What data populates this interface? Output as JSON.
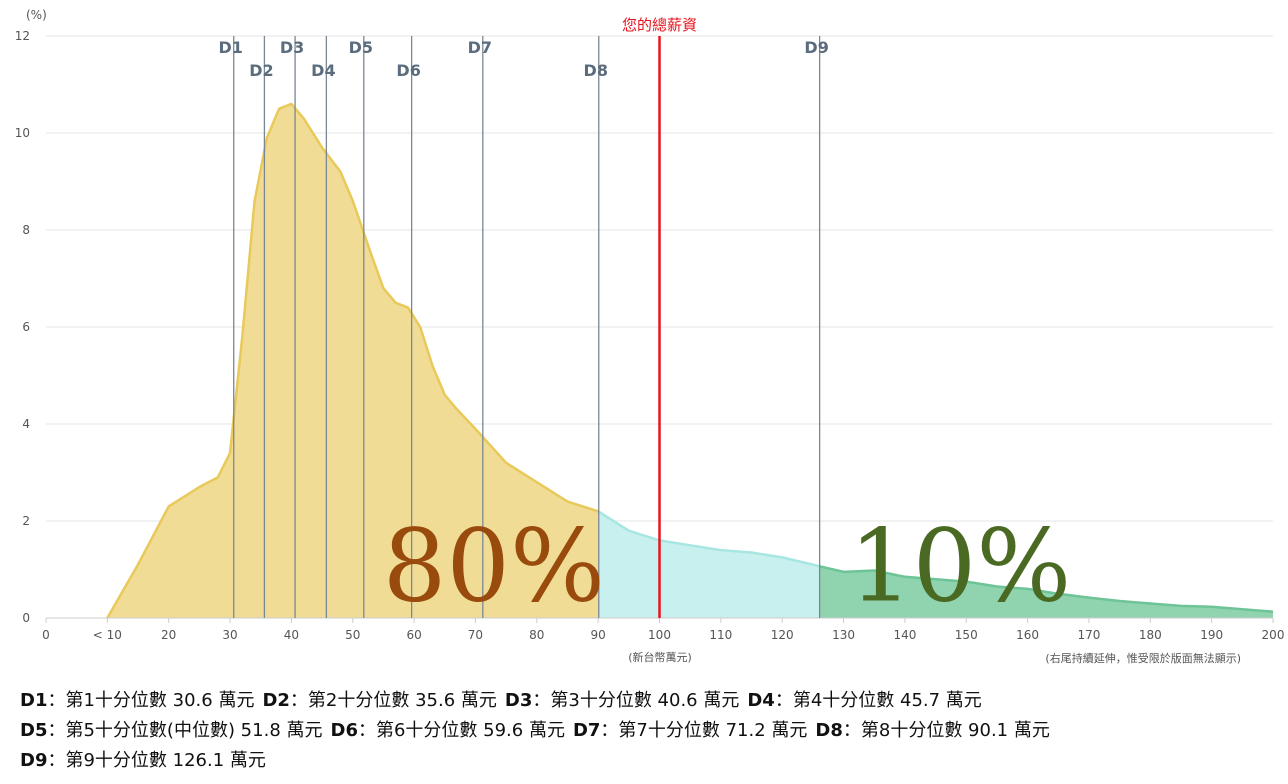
{
  "chart_data": {
    "type": "area",
    "ylabel": "(%)",
    "xlabel": "(新台幣萬元)",
    "note": "(右尾持續延伸，惟受限於版面無法顯示)",
    "ylim": [
      0,
      12
    ],
    "yticks": [
      "0",
      "2",
      "4",
      "6",
      "8",
      "10",
      "12"
    ],
    "xlim": [
      0,
      200
    ],
    "xticks": [
      {
        "value": 0,
        "label": "0"
      },
      {
        "value": 10,
        "label": "< 10"
      },
      {
        "value": 20,
        "label": "20"
      },
      {
        "value": 30,
        "label": "30"
      },
      {
        "value": 40,
        "label": "40"
      },
      {
        "value": 50,
        "label": "50"
      },
      {
        "value": 60,
        "label": "60"
      },
      {
        "value": 70,
        "label": "70"
      },
      {
        "value": 80,
        "label": "80"
      },
      {
        "value": 90,
        "label": "90"
      },
      {
        "value": 100,
        "label": "100"
      },
      {
        "value": 110,
        "label": "110"
      },
      {
        "value": 120,
        "label": "120"
      },
      {
        "value": 130,
        "label": "130"
      },
      {
        "value": 140,
        "label": "140"
      },
      {
        "value": 150,
        "label": "150"
      },
      {
        "value": 160,
        "label": "160"
      },
      {
        "value": 170,
        "label": "170"
      },
      {
        "value": 180,
        "label": "180"
      },
      {
        "value": 190,
        "label": "190"
      },
      {
        "value": 200,
        "label": "200"
      }
    ],
    "grid": true,
    "distribution": [
      [
        10,
        0
      ],
      [
        15,
        1.1
      ],
      [
        20,
        2.3
      ],
      [
        25,
        2.7
      ],
      [
        28,
        2.9
      ],
      [
        30,
        3.4
      ],
      [
        32,
        5.8
      ],
      [
        34,
        8.6
      ],
      [
        36,
        9.9
      ],
      [
        38,
        10.5
      ],
      [
        40,
        10.6
      ],
      [
        42,
        10.3
      ],
      [
        45,
        9.7
      ],
      [
        48,
        9.2
      ],
      [
        50,
        8.6
      ],
      [
        53,
        7.5
      ],
      [
        55,
        6.8
      ],
      [
        57,
        6.5
      ],
      [
        59,
        6.4
      ],
      [
        61,
        6.0
      ],
      [
        63,
        5.2
      ],
      [
        65,
        4.6
      ],
      [
        67,
        4.3
      ],
      [
        70,
        3.9
      ],
      [
        75,
        3.2
      ],
      [
        80,
        2.8
      ],
      [
        85,
        2.4
      ],
      [
        90,
        2.2
      ],
      [
        95,
        1.8
      ],
      [
        100,
        1.6
      ],
      [
        105,
        1.5
      ],
      [
        110,
        1.4
      ],
      [
        115,
        1.35
      ],
      [
        120,
        1.25
      ],
      [
        125,
        1.1
      ],
      [
        130,
        0.95
      ],
      [
        135,
        0.98
      ],
      [
        140,
        0.85
      ],
      [
        145,
        0.8
      ],
      [
        150,
        0.75
      ],
      [
        155,
        0.65
      ],
      [
        160,
        0.6
      ],
      [
        165,
        0.5
      ],
      [
        170,
        0.42
      ],
      [
        175,
        0.35
      ],
      [
        180,
        0.3
      ],
      [
        185,
        0.25
      ],
      [
        190,
        0.23
      ],
      [
        195,
        0.18
      ],
      [
        200,
        0.13
      ]
    ],
    "segments": [
      {
        "from": 10,
        "to": 90.1,
        "color": "#f1dc95",
        "stroke": "#e8c95a"
      },
      {
        "from": 90.1,
        "to": 126.1,
        "color": "#c8f0ee",
        "stroke": "#a8e6e2"
      },
      {
        "from": 126.1,
        "to": 200,
        "color": "#8fd4af",
        "stroke": "#6ec496"
      }
    ],
    "deciles": [
      {
        "label": "D1",
        "value": 30.6,
        "row": 0
      },
      {
        "label": "D2",
        "value": 35.6,
        "row": 1
      },
      {
        "label": "D3",
        "value": 40.6,
        "row": 0
      },
      {
        "label": "D4",
        "value": 45.7,
        "row": 1
      },
      {
        "label": "D5",
        "value": 51.8,
        "row": 0
      },
      {
        "label": "D6",
        "value": 59.6,
        "row": 1
      },
      {
        "label": "D7",
        "value": 71.2,
        "row": 0
      },
      {
        "label": "D8",
        "value": 90.1,
        "row": 1
      },
      {
        "label": "D9",
        "value": 126.1,
        "row": 0
      }
    ],
    "salary_marker": {
      "label": "您的總薪資",
      "value": 100,
      "color": "#e8141e"
    },
    "annotations": [
      {
        "text": "80%",
        "x_center": 73,
        "y": 0.4,
        "color": "#994a0d"
      },
      {
        "text": "10%",
        "x_center": 149,
        "y": 0.4,
        "color": "#4a6a24"
      }
    ]
  },
  "legend": [
    [
      {
        "key": "D1",
        "text": "：第1十分位數 30.6 萬元"
      },
      {
        "key": "D2",
        "text": "：第2十分位數 35.6 萬元"
      },
      {
        "key": "D3",
        "text": "：第3十分位數 40.6 萬元"
      },
      {
        "key": "D4",
        "text": "：第4十分位數 45.7 萬元"
      }
    ],
    [
      {
        "key": "D5",
        "text": "：第5十分位數(中位數) 51.8 萬元"
      },
      {
        "key": "D6",
        "text": "：第6十分位數 59.6 萬元"
      },
      {
        "key": "D7",
        "text": "：第7十分位數 71.2 萬元"
      },
      {
        "key": "D8",
        "text": "：第8十分位數 90.1 萬元"
      }
    ],
    [
      {
        "key": "D9",
        "text": "：第9十分位數 126.1 萬元"
      }
    ]
  ]
}
